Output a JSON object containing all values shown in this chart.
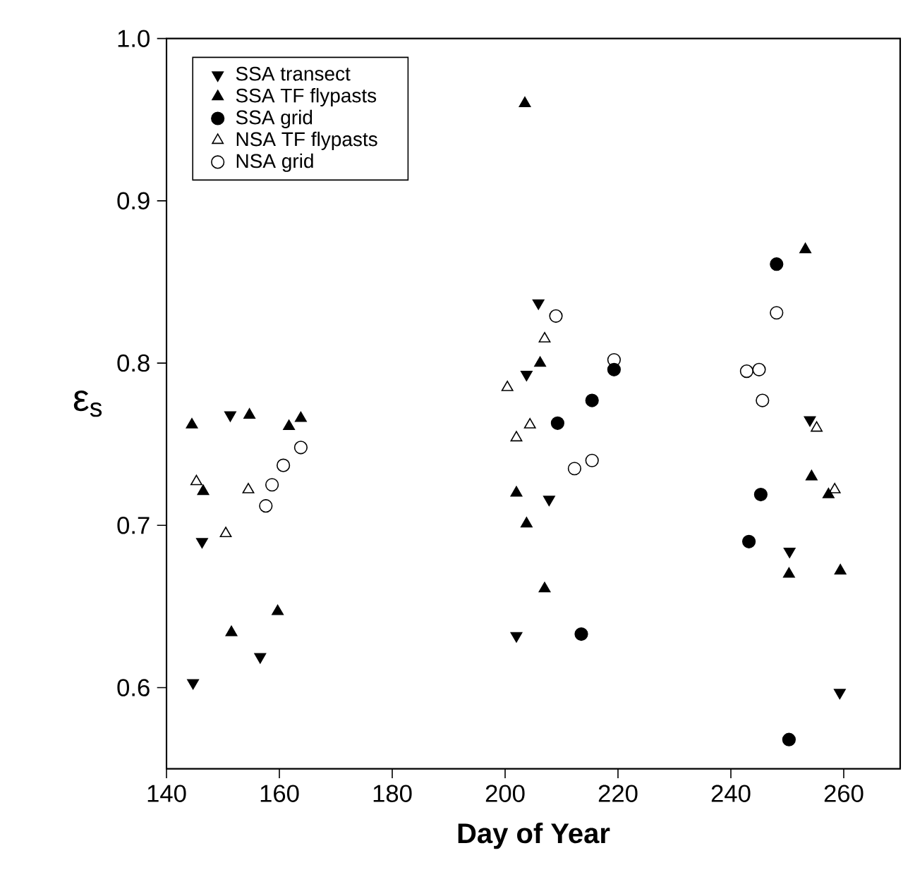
{
  "chart_data": {
    "type": "scatter",
    "xlabel": "Day of Year",
    "ylabel": "ε$_{s}$",
    "xlim": [
      140,
      270
    ],
    "ylim": [
      0.55,
      1.0
    ],
    "xticks": [
      140,
      160,
      180,
      200,
      220,
      240,
      260
    ],
    "yticks": [
      0.6,
      0.7,
      0.8,
      0.9,
      {
        "value": 1,
        "label": "1.0"
      }
    ],
    "legend": "top left",
    "grid": false,
    "series": [
      {
        "name": "SSA transect",
        "color": "#000000",
        "marker": "triangle-down",
        "x": [
          151.3,
          146.3,
          156.6,
          144.7,
          205.9,
          203.8,
          207.8,
          202,
          254,
          250.4,
          259.3
        ],
        "values": [
          0.768,
          0.69,
          0.619,
          0.603,
          0.837,
          0.793,
          0.716,
          0.632,
          0.765,
          0.684,
          0.597
        ]
      },
      {
        "name": "SSA TF flypasts",
        "color": "#000000",
        "marker": "triangle",
        "x": [
          144.5,
          154.7,
          146.5,
          161.7,
          163.8,
          151.5,
          159.7,
          203.5,
          206.2,
          202,
          203.8,
          207,
          253.2,
          254.3,
          257.3,
          250.3,
          259.4
        ],
        "values": [
          0.762,
          0.768,
          0.721,
          0.761,
          0.766,
          0.634,
          0.647,
          0.96,
          0.8,
          0.72,
          0.701,
          0.661,
          0.87,
          0.73,
          0.719,
          0.67,
          0.672
        ]
      },
      {
        "name": "SSA grid",
        "color": "#000000",
        "marker": "circle",
        "x": [
          219.3,
          215.4,
          209.3,
          213.5,
          248.1,
          245.3,
          243.2,
          250.3
        ],
        "values": [
          0.796,
          0.777,
          0.763,
          0.633,
          0.861,
          0.719,
          0.69,
          0.568
        ]
      },
      {
        "name": "NSA TF flypasts",
        "color": "#000000",
        "marker": "triangle-open",
        "x": [
          145.3,
          150.5,
          154.5,
          207,
          200.4,
          204.4,
          202,
          255.2,
          258.4
        ],
        "values": [
          0.727,
          0.695,
          0.722,
          0.815,
          0.785,
          0.762,
          0.754,
          0.76,
          0.722
        ]
      },
      {
        "name": "NSA grid",
        "color": "#000000",
        "marker": "circle-open",
        "x": [
          157.6,
          158.7,
          160.7,
          163.8,
          209,
          219.3,
          212.3,
          215.4,
          248.1,
          242.8,
          245,
          245.6
        ],
        "values": [
          0.712,
          0.725,
          0.737,
          0.748,
          0.829,
          0.802,
          0.735,
          0.74,
          0.831,
          0.795,
          0.796,
          0.777
        ]
      }
    ]
  }
}
